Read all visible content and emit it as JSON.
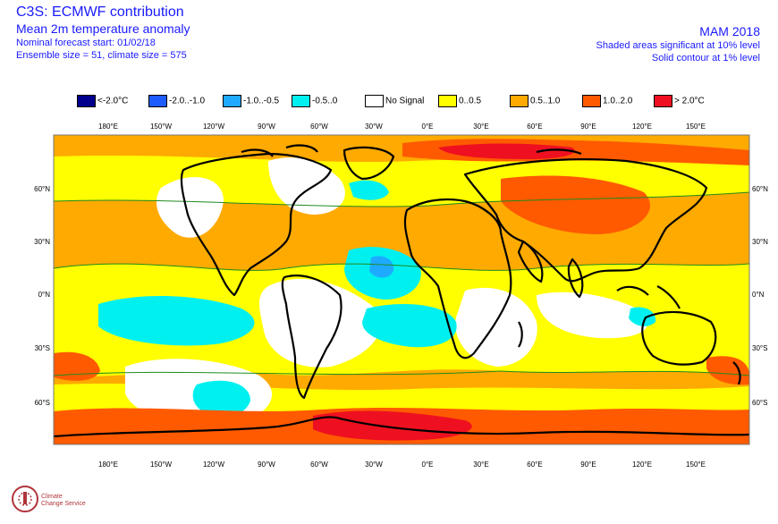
{
  "header": {
    "title": "C3S: ECMWF contribution",
    "subtitle": "Mean 2m temperature anomaly",
    "forecast_start": "Nominal forecast start: 01/02/18",
    "ensemble": "Ensemble size = 51, climate size = 575",
    "season": "MAM 2018",
    "note1": "Shaded areas significant at 10% level",
    "note2": "Solid contour at 1% level"
  },
  "legend": [
    {
      "label": "<-2.0°C",
      "color": "#00008c"
    },
    {
      "label": "-2.0..-1.0",
      "color": "#1e5cff"
    },
    {
      "label": "-1.0..-0.5",
      "color": "#1eaaff"
    },
    {
      "label": "-0.5..0",
      "color": "#00f0f0"
    },
    {
      "label": "No Signal",
      "color": "#ffffff"
    },
    {
      "label": "0..0.5",
      "color": "#ffff00"
    },
    {
      "label": "0.5..1.0",
      "color": "#ffaa00"
    },
    {
      "label": "1.0..2.0",
      "color": "#ff5a00"
    },
    {
      "label": "> 2.0°C",
      "color": "#ee1020"
    }
  ],
  "axes": {
    "lon_labels": [
      "180°E",
      "150°W",
      "120°W",
      "90°W",
      "60°W",
      "30°W",
      "0°E",
      "30°E",
      "60°E",
      "90°E",
      "120°E",
      "150°E"
    ],
    "lat_labels": [
      "60°N",
      "30°N",
      "0°N",
      "30°S",
      "60°S"
    ]
  },
  "logo": {
    "line1": "Climate",
    "line2": "Change Service"
  }
}
